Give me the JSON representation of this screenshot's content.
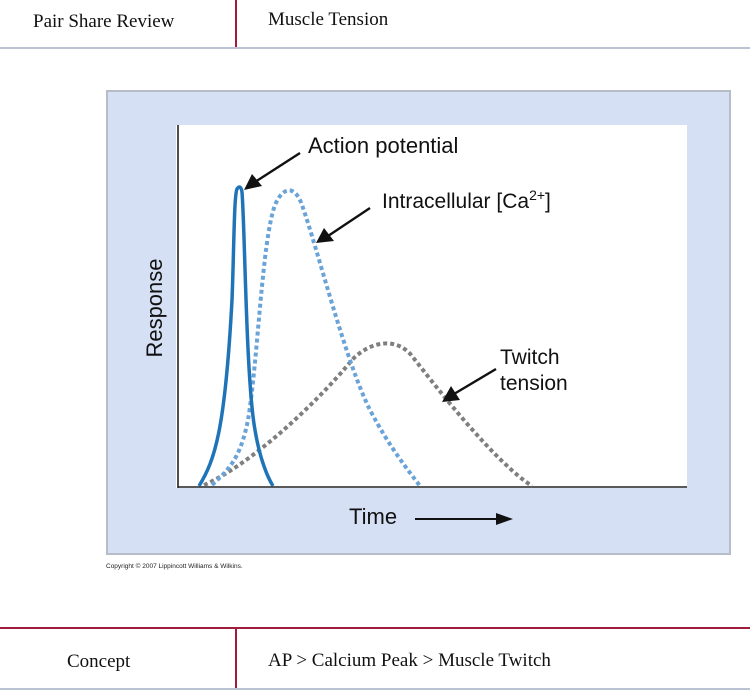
{
  "header": {
    "left_label": "Pair Share Review",
    "right_label": "Muscle Tension"
  },
  "figure": {
    "ylabel": "Response",
    "xlabel": "Time",
    "annotations": {
      "action_potential": "Action potential",
      "calcium_prefix": "Intracellular [Ca",
      "calcium_sup": "2+",
      "calcium_suffix": "]",
      "twitch_line1": "Twitch",
      "twitch_line2": "tension"
    },
    "copyright": "Copyright © 2007 Lippincott Williams & Wilkins."
  },
  "footer": {
    "left_label": "Concept",
    "right_label": "AP > Calcium Peak > Muscle Twitch"
  },
  "colors": {
    "action_potential": "#1f74b8",
    "calcium": "#6aa3d8",
    "twitch": "#7f7f7f",
    "frame_bg": "#d6e0f4",
    "divider": "#a01d3c"
  }
}
